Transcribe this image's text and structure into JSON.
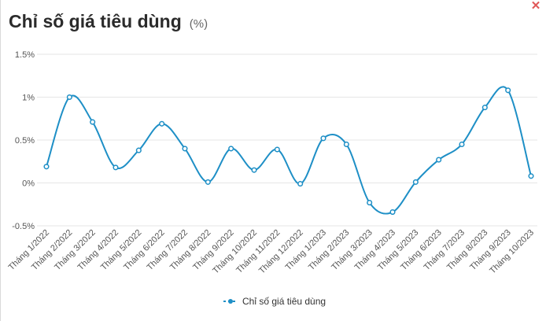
{
  "header": {
    "title": "Chỉ số giá tiêu dùng",
    "unit": "(%)",
    "close_glyph": "✕"
  },
  "colors": {
    "line": "#1e8fc6",
    "grid": "#e6e6e6",
    "axis": "#cccccc"
  },
  "chart_data": {
    "type": "line",
    "categories": [
      "Tháng 1/2022",
      "Tháng 2/2022",
      "Tháng 3/2022",
      "Tháng 4/2022",
      "Tháng 5/2022",
      "Tháng 6/2022",
      "Tháng 7/2022",
      "Tháng 8/2022",
      "Tháng 9/2022",
      "Tháng 10/2022",
      "Tháng 11/2022",
      "Tháng 12/2022",
      "Tháng 1/2023",
      "Tháng 2/2023",
      "Tháng 3/2023",
      "Tháng 4/2023",
      "Tháng 5/2023",
      "Tháng 6/2023",
      "Tháng 7/2023",
      "Tháng 8/2023",
      "Tháng 9/2023",
      "Tháng 10/2023"
    ],
    "series": [
      {
        "name": "Chỉ số giá tiêu dùng",
        "values": [
          0.19,
          1.0,
          0.71,
          0.18,
          0.38,
          0.69,
          0.4,
          0.01,
          0.4,
          0.15,
          0.39,
          -0.01,
          0.52,
          0.45,
          -0.23,
          -0.34,
          0.01,
          0.27,
          0.45,
          0.88,
          1.08,
          0.08
        ]
      }
    ],
    "ylim": [
      -0.5,
      1.5
    ],
    "yticks": [
      -0.5,
      0,
      0.5,
      1,
      1.5
    ],
    "ytick_labels": [
      "-0.5%",
      "0%",
      "0.5%",
      "1%",
      "1.5%"
    ],
    "grid": true,
    "legend": "bottom-center",
    "xlabel": "",
    "ylabel": ""
  }
}
